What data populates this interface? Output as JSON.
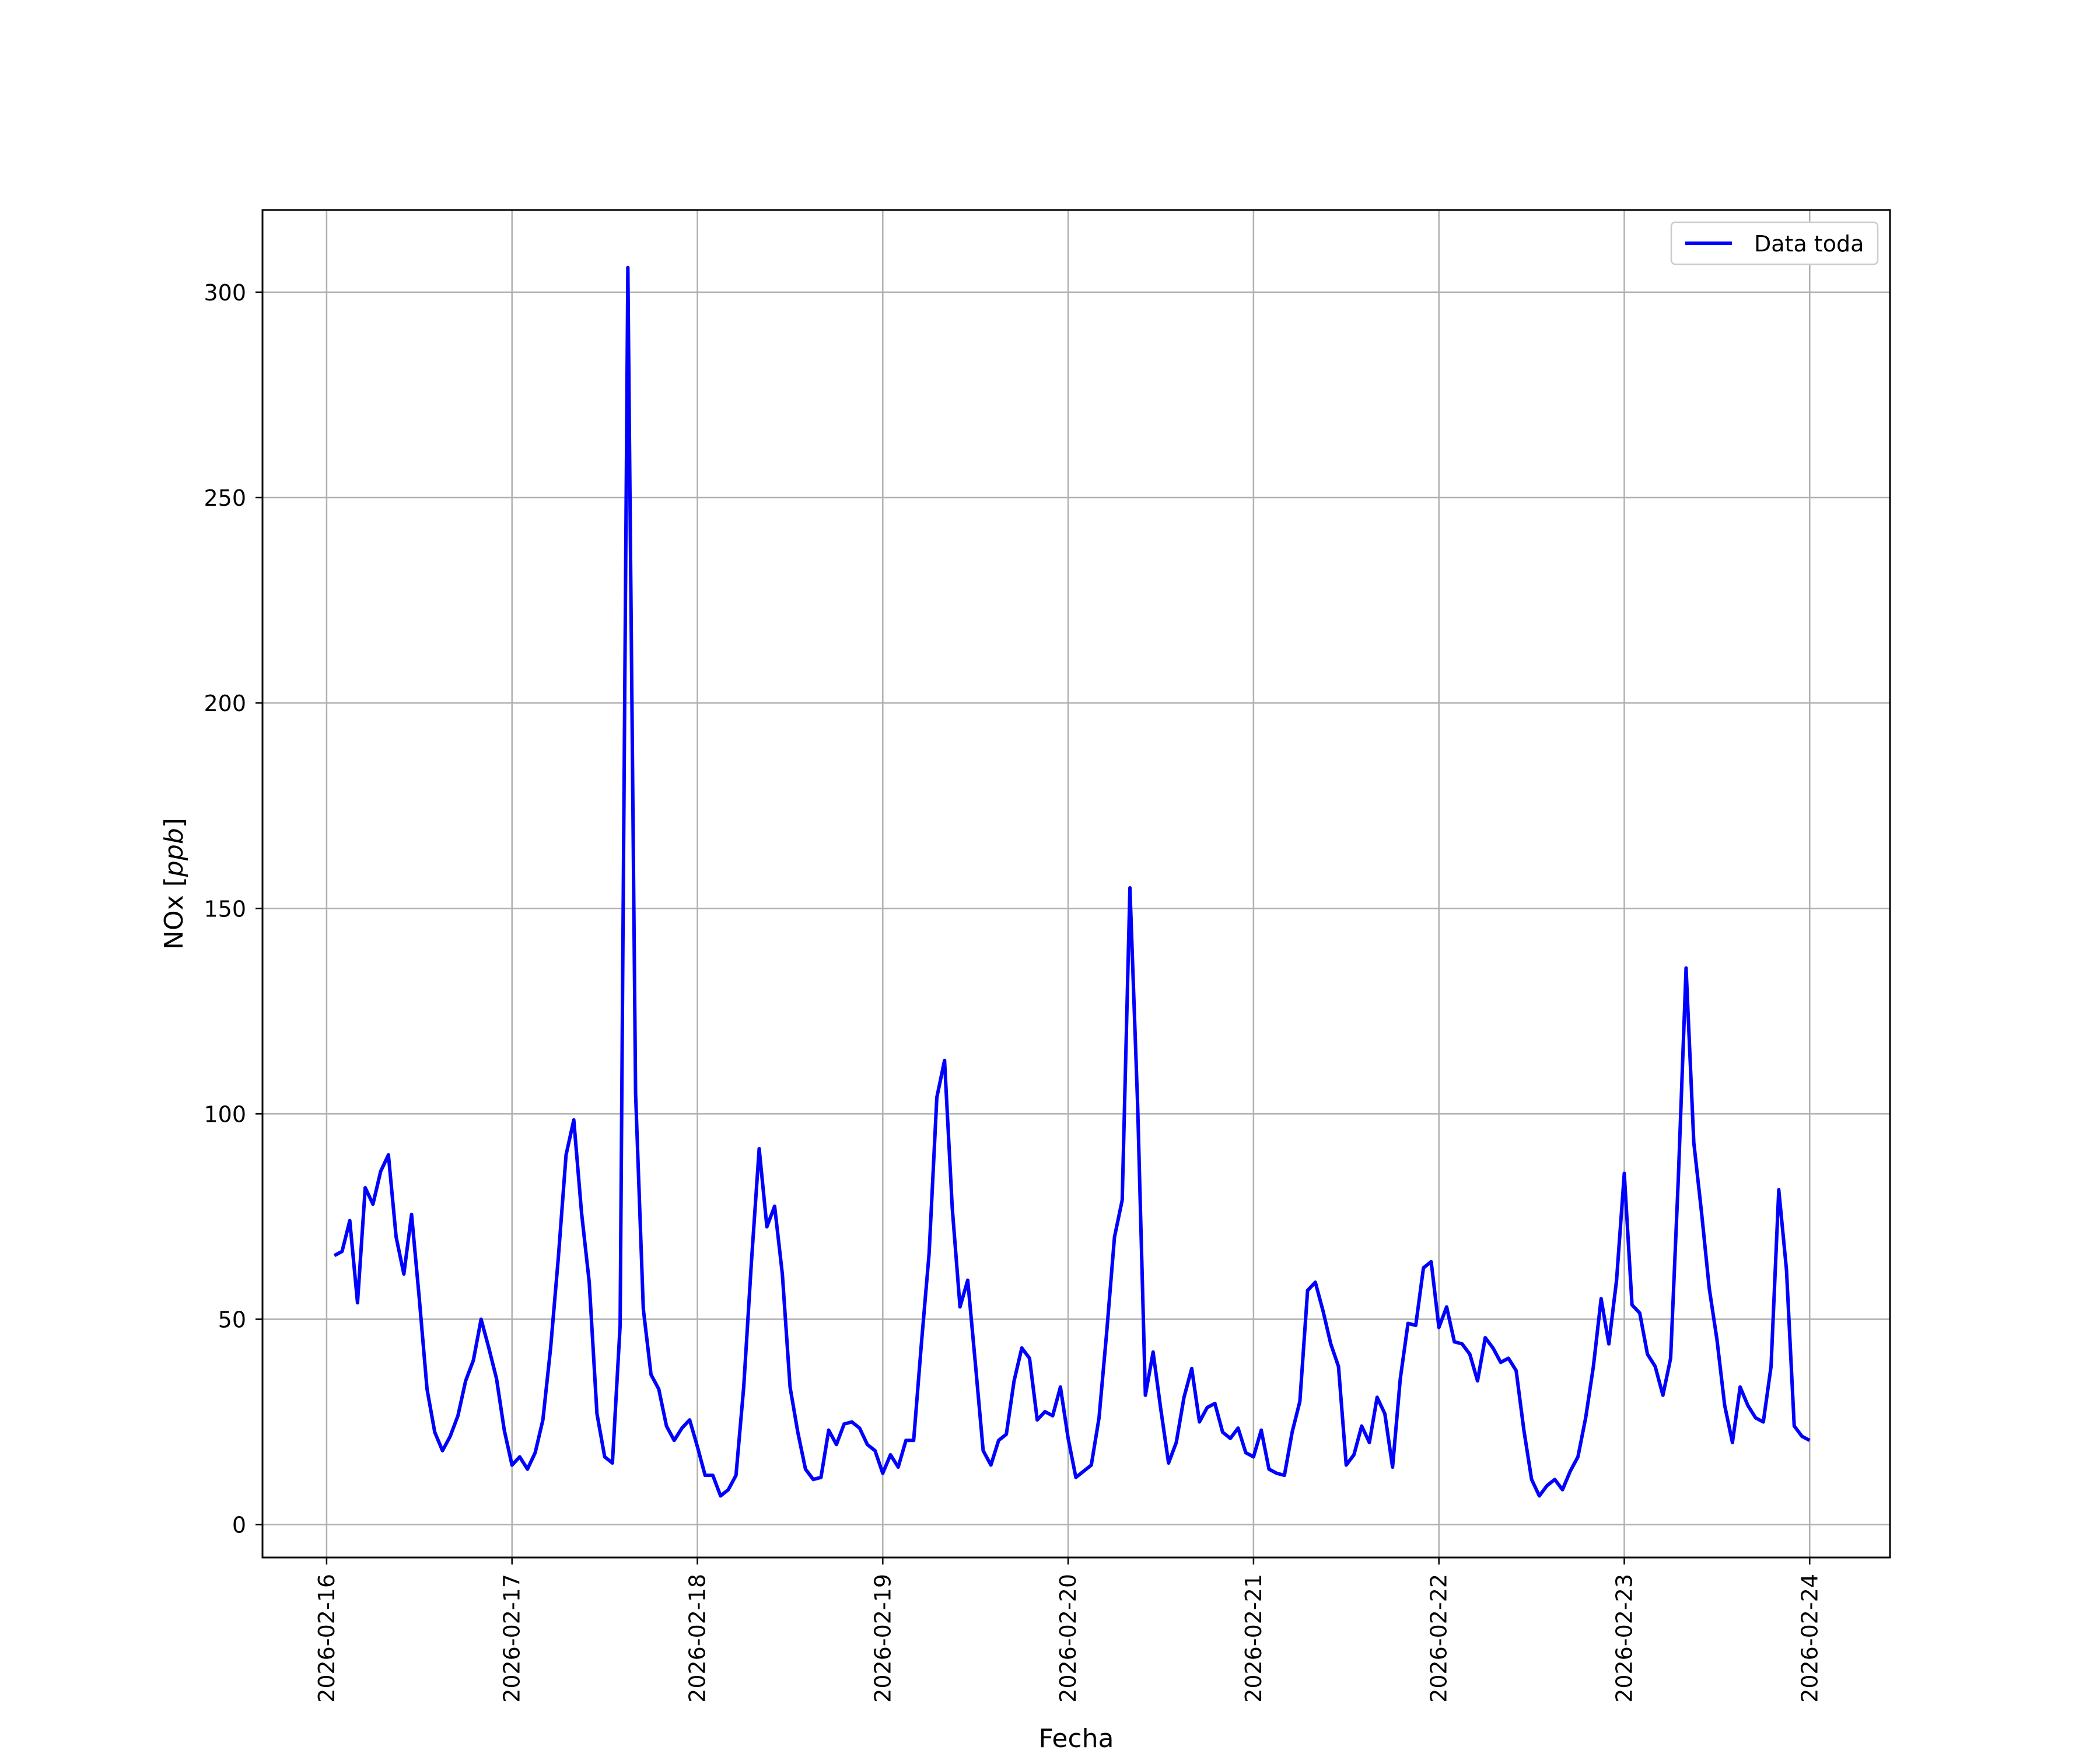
{
  "chart_data": {
    "type": "line",
    "title": "",
    "xlabel": "Fecha",
    "ylabel_main": "NOx [",
    "ylabel_unit": "ppb",
    "ylabel_close": "]",
    "xlim": [
      "2026-02-15T15:42",
      "2026-02-24T10:24"
    ],
    "ylim": [
      -8,
      320
    ],
    "xticks": [
      "2026-02-16",
      "2026-02-17",
      "2026-02-18",
      "2026-02-19",
      "2026-02-20",
      "2026-02-21",
      "2026-02-22",
      "2026-02-23",
      "2026-02-24"
    ],
    "yticks": [
      0,
      50,
      100,
      150,
      200,
      250,
      300
    ],
    "grid": true,
    "legend_position": "upper right",
    "series": [
      {
        "name": "Data toda",
        "color": "#0000ff",
        "x_start": "2026-02-16T01:00",
        "x_step_hours": 1,
        "y": [
          65.5,
          66.5,
          74,
          54,
          82,
          78,
          86,
          90,
          70,
          61,
          75.5,
          55,
          33,
          22.5,
          18,
          21.5,
          26.5,
          35,
          40,
          50,
          43,
          35.5,
          23,
          14.5,
          16.5,
          13.5,
          17.5,
          25.5,
          43,
          65,
          90,
          98.5,
          76,
          59,
          27,
          16.5,
          15,
          48.5,
          306,
          105,
          52.5,
          36.5,
          33,
          24,
          20.5,
          23.5,
          25.5,
          19,
          12,
          12,
          7,
          8.5,
          12,
          33.5,
          64,
          91.5,
          72.5,
          77.5,
          61,
          33.5,
          22.5,
          13.5,
          11,
          11.5,
          23,
          19.5,
          24.5,
          25,
          23.5,
          19.5,
          18,
          12.5,
          17,
          14,
          20.5,
          20.5,
          44,
          66,
          104,
          113,
          77,
          53,
          59.5,
          39,
          18,
          14.5,
          20.5,
          22,
          35,
          43,
          40.5,
          25.5,
          27.5,
          26.5,
          33.5,
          21,
          11.5,
          13,
          14.5,
          26,
          47,
          70,
          79,
          155,
          102,
          31.5,
          42,
          28,
          15,
          20,
          31,
          38,
          25,
          28.5,
          29.5,
          22.5,
          21,
          23.5,
          17.5,
          16.5,
          23,
          13.5,
          12.5,
          12,
          22.5,
          30,
          57,
          59,
          52,
          44,
          38.5,
          14.5,
          17,
          24,
          20,
          31,
          27,
          14,
          35.5,
          49,
          48.5,
          62.5,
          64,
          48,
          53,
          44.5,
          44,
          41.5,
          35,
          45.5,
          43,
          39.5,
          40.5,
          37.5,
          23,
          11,
          7,
          9.5,
          11,
          8.5,
          13,
          16.5,
          26,
          38.5,
          55,
          44,
          59.5,
          85.5,
          53.5,
          51.5,
          41.5,
          38.5,
          31.5,
          40.5,
          84.5,
          135.5,
          93,
          76,
          57.5,
          45,
          29,
          20,
          33.5,
          29,
          26,
          25,
          38.5,
          81.5,
          62,
          24,
          21.5,
          20.5
        ]
      }
    ]
  }
}
